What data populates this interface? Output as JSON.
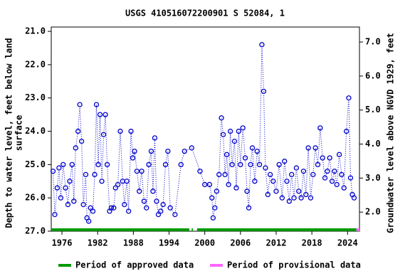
{
  "chart_data": {
    "type": "scatter",
    "title": "USGS 410516072200901 S 52084, 1",
    "ylabel": [
      "Depth to water level, feet below land",
      "surface"
    ],
    "y2label": "Groundwater level above NGVD 1929, feet",
    "xlim": [
      1974.2,
      2026.0
    ],
    "xticks": [
      1976,
      1982,
      1988,
      1994,
      2000,
      2006,
      2012,
      2018,
      2024
    ],
    "ylim": [
      20.87,
      27.0
    ],
    "yticks": [
      {
        "value": 21,
        "label": "21.0"
      },
      {
        "value": 22,
        "label": "22.0"
      },
      {
        "value": 23,
        "label": "23.0"
      },
      {
        "value": 24,
        "label": "24.0"
      },
      {
        "value": 25,
        "label": "25.0"
      },
      {
        "value": 26,
        "label": "26.0"
      },
      {
        "value": 27,
        "label": "27.0"
      }
    ],
    "y2lim": [
      7.44,
      1.44
    ],
    "y2ticks": [
      {
        "value": 7,
        "label": "7.0"
      },
      {
        "value": 6,
        "label": "6.0"
      },
      {
        "value": 5,
        "label": "5.0"
      },
      {
        "value": 4,
        "label": "4.0"
      },
      {
        "value": 3,
        "label": "3.0"
      },
      {
        "value": 2,
        "label": "2.0"
      }
    ],
    "series": [
      {
        "color": "#0000cc",
        "x": [
          1974.5,
          1974.8,
          1975.2,
          1975.5,
          1975.8,
          1976.2,
          1976.6,
          1977.0,
          1977.3,
          1977.7,
          1978.0,
          1978.3,
          1978.7,
          1979.0,
          1979.3,
          1979.6,
          1980.0,
          1980.2,
          1980.5,
          1980.8,
          1981.2,
          1981.5,
          1981.8,
          1982.1,
          1982.4,
          1982.7,
          1983.0,
          1983.3,
          1983.6,
          1984.0,
          1984.3,
          1984.7,
          1985.0,
          1985.4,
          1985.8,
          1986.2,
          1986.5,
          1986.9,
          1987.2,
          1987.6,
          1987.9,
          1988.2,
          1988.6,
          1989.0,
          1989.4,
          1989.8,
          1990.2,
          1990.6,
          1991.0,
          1991.3,
          1991.6,
          1991.9,
          1992.2,
          1992.6,
          1993.0,
          1993.4,
          1993.8,
          1994.2,
          1995.0,
          1996.0,
          1996.6,
          1997.8,
          1999.2,
          2000.0,
          2000.8,
          2001.2,
          2001.4,
          2001.7,
          2002.0,
          2002.4,
          2002.8,
          2003.1,
          2003.4,
          2003.7,
          2004.0,
          2004.3,
          2004.6,
          2005.0,
          2005.3,
          2005.7,
          2006.0,
          2006.4,
          2006.8,
          2007.1,
          2007.4,
          2007.7,
          2008.0,
          2008.4,
          2008.8,
          2009.2,
          2009.6,
          2009.9,
          2010.2,
          2010.6,
          2011.0,
          2011.5,
          2012.0,
          2012.5,
          2013.0,
          2013.4,
          2013.8,
          2014.2,
          2014.6,
          2015.0,
          2015.4,
          2015.8,
          2016.2,
          2016.6,
          2017.0,
          2017.4,
          2017.8,
          2018.2,
          2018.6,
          2019.0,
          2019.4,
          2019.8,
          2020.2,
          2020.6,
          2021.0,
          2021.4,
          2021.8,
          2022.2,
          2022.6,
          2023.0,
          2023.4,
          2023.8,
          2024.2,
          2024.5,
          2024.8,
          2025.1
        ],
        "values": [
          25.2,
          26.5,
          25.7,
          25.1,
          26.0,
          25.0,
          25.7,
          26.2,
          25.5,
          25.0,
          26.1,
          24.5,
          24.0,
          23.2,
          24.3,
          26.2,
          25.3,
          26.6,
          26.7,
          26.3,
          26.4,
          25.3,
          23.2,
          25.0,
          23.5,
          25.5,
          24.1,
          23.5,
          25.0,
          26.4,
          26.3,
          26.3,
          25.7,
          25.6,
          24.0,
          25.5,
          26.2,
          25.5,
          26.4,
          24.0,
          24.8,
          24.6,
          25.2,
          25.8,
          25.2,
          26.1,
          26.3,
          25.0,
          24.6,
          25.8,
          24.2,
          26.1,
          26.5,
          26.4,
          26.2,
          25.0,
          24.6,
          26.3,
          26.5,
          25.0,
          24.6,
          24.5,
          25.2,
          25.6,
          25.6,
          26.0,
          26.6,
          26.3,
          25.8,
          25.3,
          23.6,
          24.1,
          25.3,
          24.7,
          25.6,
          24.0,
          25.0,
          24.3,
          25.7,
          24.0,
          25.0,
          23.9,
          24.8,
          25.8,
          26.3,
          25.0,
          24.5,
          25.5,
          24.6,
          25.0,
          21.4,
          22.8,
          25.1,
          25.9,
          25.3,
          25.5,
          25.8,
          25.0,
          26.0,
          24.9,
          25.5,
          26.1,
          25.3,
          26.0,
          25.1,
          25.8,
          26.0,
          25.2,
          25.9,
          24.5,
          26.0,
          25.3,
          24.5,
          25.0,
          23.9,
          24.8,
          25.4,
          25.2,
          24.8,
          25.5,
          25.2,
          25.6,
          24.7,
          25.3,
          25.7,
          24.0,
          23.0,
          25.4,
          25.9,
          26.0
        ]
      }
    ],
    "periods": [
      {
        "name": "Period of approved data",
        "color": "#009900",
        "ranges": [
          [
            1974.3,
            1997.4
          ],
          [
            1997.8,
            1998.0
          ],
          [
            1998.7,
            2025.5
          ]
        ]
      },
      {
        "name": "Period of provisional data",
        "color": "#ff66ff",
        "ranges": [
          [
            2025.5,
            2026.0
          ]
        ]
      }
    ]
  }
}
